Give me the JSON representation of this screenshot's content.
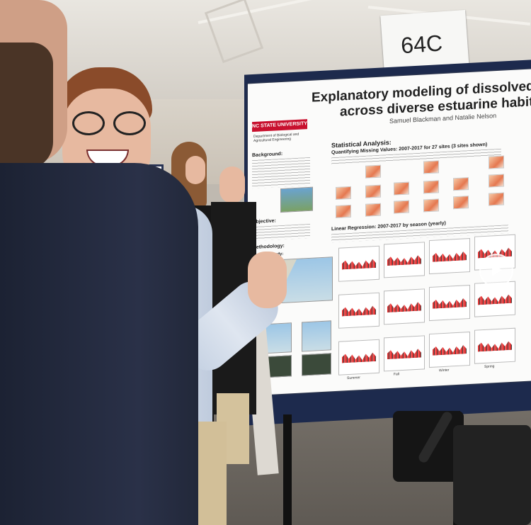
{
  "sign": {
    "label": "64C"
  },
  "poster": {
    "title": "Explanatory modeling of dissolved oxyg",
    "title2": "across diverse estuarine habit",
    "authors": "Samuel Blackman and Natalie Nelson",
    "logo": "NC STATE UNIVERSITY",
    "department": "Department of Biological and Agricultural Engineering",
    "sections": {
      "background": "Background:",
      "objective": "Objective:",
      "methodology": "Methodology:",
      "areas": "Areas of Study:",
      "stat": "Statistical Analysis:",
      "missing": "Quantifying Missing Values: 2007-2017 for 27 sites (3 sites shown)",
      "linreg": "Linear Regression: 2007-2017 by season (yearly)"
    },
    "seasons": [
      "Summer",
      "Fall",
      "Winter",
      "Spring"
    ]
  },
  "colors": {
    "board": "#1d2a4d",
    "logo": "#c8102e",
    "plot_line": "#d33333"
  },
  "icons": {
    "play": "play-icon"
  }
}
